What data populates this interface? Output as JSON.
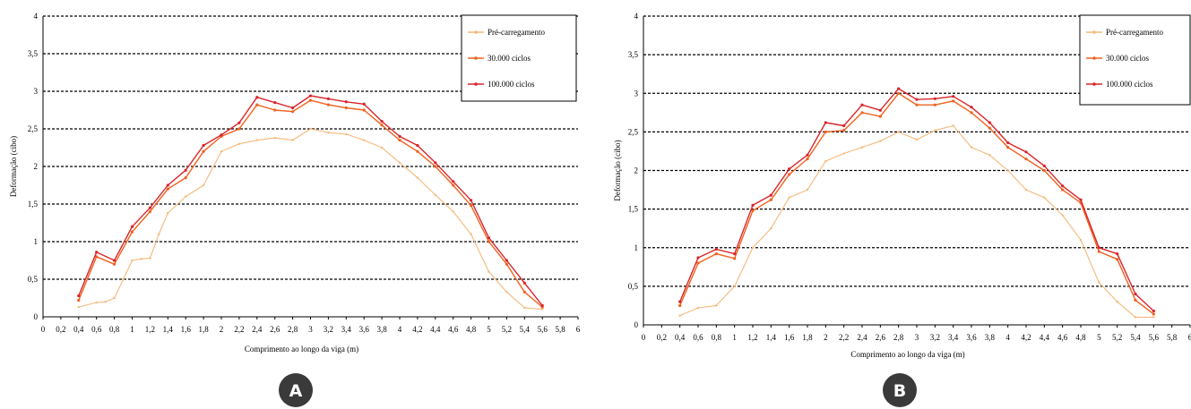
{
  "colors": {
    "pre": "#f4b97a",
    "c30k": "#f0621f",
    "c100k": "#d9252b",
    "badge": "#3a3a3a",
    "grid": "#000000"
  },
  "chart_data": [
    {
      "type": "line",
      "badge": "A",
      "xlabel": "Comprimento ao longo da viga (m)",
      "ylabel": "Deformação (cibo)",
      "xlim": [
        0,
        6
      ],
      "ylim": [
        0,
        4
      ],
      "x_ticks": [
        "0",
        "0,2",
        "0,4",
        "0,6",
        "0,8",
        "1",
        "1,2",
        "1,4",
        "1,6",
        "1,8",
        "2",
        "2,2",
        "2,4",
        "2,6",
        "2,8",
        "3",
        "3,2",
        "3,4",
        "3,6",
        "3,8",
        "4",
        "4,2",
        "4,4",
        "4,6",
        "4,8",
        "5",
        "5,2",
        "5,4",
        "5,6",
        "5,8",
        "6"
      ],
      "y_ticks": [
        "0",
        "0,5",
        "1",
        "1,5",
        "2",
        "2,5",
        "3",
        "3,5",
        "4"
      ],
      "grid": "horizontal dashed",
      "legend_position": "top-right",
      "series": [
        {
          "name": "Pré-carregamento",
          "color_key": "pre",
          "x": [
            0.4,
            0.6,
            0.7,
            0.8,
            0.9,
            1.0,
            1.1,
            1.2,
            1.3,
            1.4,
            1.6,
            1.8,
            2.0,
            2.2,
            2.4,
            2.6,
            2.8,
            3.0,
            3.2,
            3.4,
            3.6,
            3.8,
            4.0,
            4.2,
            4.4,
            4.6,
            4.8,
            5.0,
            5.2,
            5.4,
            5.6
          ],
          "y": [
            0.13,
            0.19,
            0.2,
            0.25,
            0.5,
            0.75,
            0.77,
            0.78,
            1.1,
            1.38,
            1.6,
            1.75,
            2.2,
            2.3,
            2.35,
            2.38,
            2.35,
            2.5,
            2.45,
            2.43,
            2.35,
            2.25,
            2.05,
            1.85,
            1.62,
            1.4,
            1.1,
            0.6,
            0.33,
            0.12,
            0.1
          ]
        },
        {
          "name": "30.000 ciclos",
          "color_key": "c30k",
          "x": [
            0.4,
            0.6,
            0.8,
            1.0,
            1.2,
            1.4,
            1.6,
            1.8,
            2.0,
            2.2,
            2.4,
            2.6,
            2.8,
            3.0,
            3.2,
            3.4,
            3.6,
            3.8,
            4.0,
            4.2,
            4.4,
            4.6,
            4.8,
            5.0,
            5.2,
            5.4,
            5.6
          ],
          "y": [
            0.22,
            0.8,
            0.7,
            1.13,
            1.4,
            1.7,
            1.85,
            2.2,
            2.4,
            2.5,
            2.82,
            2.75,
            2.73,
            2.88,
            2.82,
            2.78,
            2.75,
            2.55,
            2.35,
            2.2,
            2.0,
            1.75,
            1.48,
            1.0,
            0.7,
            0.33,
            0.13
          ]
        },
        {
          "name": "100.000 ciclos",
          "color_key": "c100k",
          "x": [
            0.4,
            0.6,
            0.8,
            1.0,
            1.2,
            1.4,
            1.6,
            1.8,
            2.0,
            2.2,
            2.4,
            2.6,
            2.8,
            3.0,
            3.2,
            3.4,
            3.6,
            3.8,
            4.0,
            4.2,
            4.4,
            4.6,
            4.8,
            5.0,
            5.2,
            5.4,
            5.6
          ],
          "y": [
            0.28,
            0.86,
            0.75,
            1.2,
            1.45,
            1.75,
            1.95,
            2.28,
            2.42,
            2.58,
            2.92,
            2.85,
            2.78,
            2.94,
            2.9,
            2.86,
            2.83,
            2.6,
            2.4,
            2.28,
            2.05,
            1.8,
            1.55,
            1.05,
            0.75,
            0.45,
            0.15
          ]
        }
      ]
    },
    {
      "type": "line",
      "badge": "B",
      "xlabel": "Comprimento ao longo da viga (m)",
      "ylabel": "Deformação (cibo)",
      "xlim": [
        0,
        6
      ],
      "ylim": [
        0,
        4
      ],
      "x_ticks": [
        "0",
        "0,2",
        "0,4",
        "0,6",
        "0,8",
        "1",
        "1,2",
        "1,4",
        "1,6",
        "1,8",
        "2",
        "2,2",
        "2,4",
        "2,6",
        "2,8",
        "3",
        "3,2",
        "3,4",
        "3,6",
        "3,8",
        "4",
        "4,2",
        "4,4",
        "4,6",
        "4,8",
        "5",
        "5,2",
        "5,4",
        "5,6",
        "5,8",
        "6"
      ],
      "y_ticks": [
        "0",
        "0,5",
        "1",
        "1,5",
        "2",
        "2,5",
        "3",
        "3,5",
        "4"
      ],
      "grid": "horizontal dashed",
      "legend_position": "top-right",
      "series": [
        {
          "name": "Pré-carregamento",
          "color_key": "pre",
          "x": [
            0.4,
            0.6,
            0.8,
            1.0,
            1.2,
            1.4,
            1.6,
            1.8,
            2.0,
            2.2,
            2.4,
            2.6,
            2.8,
            3.0,
            3.2,
            3.4,
            3.6,
            3.8,
            4.0,
            4.2,
            4.4,
            4.6,
            4.8,
            5.0,
            5.2,
            5.4,
            5.6
          ],
          "y": [
            0.12,
            0.22,
            0.25,
            0.5,
            1.0,
            1.25,
            1.65,
            1.75,
            2.12,
            2.22,
            2.3,
            2.38,
            2.5,
            2.4,
            2.52,
            2.58,
            2.3,
            2.2,
            2.0,
            1.75,
            1.65,
            1.42,
            1.1,
            0.55,
            0.3,
            0.1,
            0.1
          ]
        },
        {
          "name": "30.000 ciclos",
          "color_key": "c30k",
          "x": [
            0.4,
            0.6,
            0.8,
            1.0,
            1.2,
            1.4,
            1.6,
            1.8,
            2.0,
            2.2,
            2.4,
            2.6,
            2.8,
            3.0,
            3.2,
            3.4,
            3.6,
            3.8,
            4.0,
            4.2,
            4.4,
            4.6,
            4.8,
            5.0,
            5.2,
            5.4,
            5.6
          ],
          "y": [
            0.25,
            0.8,
            0.92,
            0.86,
            1.48,
            1.62,
            1.95,
            2.15,
            2.5,
            2.52,
            2.75,
            2.7,
            3.0,
            2.85,
            2.85,
            2.9,
            2.75,
            2.55,
            2.3,
            2.15,
            2.0,
            1.75,
            1.58,
            0.95,
            0.85,
            0.32,
            0.14
          ]
        },
        {
          "name": "100.000 ciclos",
          "color_key": "c100k",
          "x": [
            0.4,
            0.6,
            0.8,
            1.0,
            1.2,
            1.4,
            1.6,
            1.8,
            2.0,
            2.2,
            2.4,
            2.6,
            2.8,
            3.0,
            3.2,
            3.4,
            3.6,
            3.8,
            4.0,
            4.2,
            4.4,
            4.6,
            4.8,
            5.0,
            5.2,
            5.4,
            5.6
          ],
          "y": [
            0.3,
            0.87,
            0.98,
            0.92,
            1.55,
            1.68,
            2.02,
            2.2,
            2.62,
            2.58,
            2.85,
            2.78,
            3.06,
            2.92,
            2.93,
            2.96,
            2.82,
            2.62,
            2.36,
            2.24,
            2.06,
            1.8,
            1.62,
            1.0,
            0.92,
            0.4,
            0.18
          ]
        }
      ]
    }
  ]
}
